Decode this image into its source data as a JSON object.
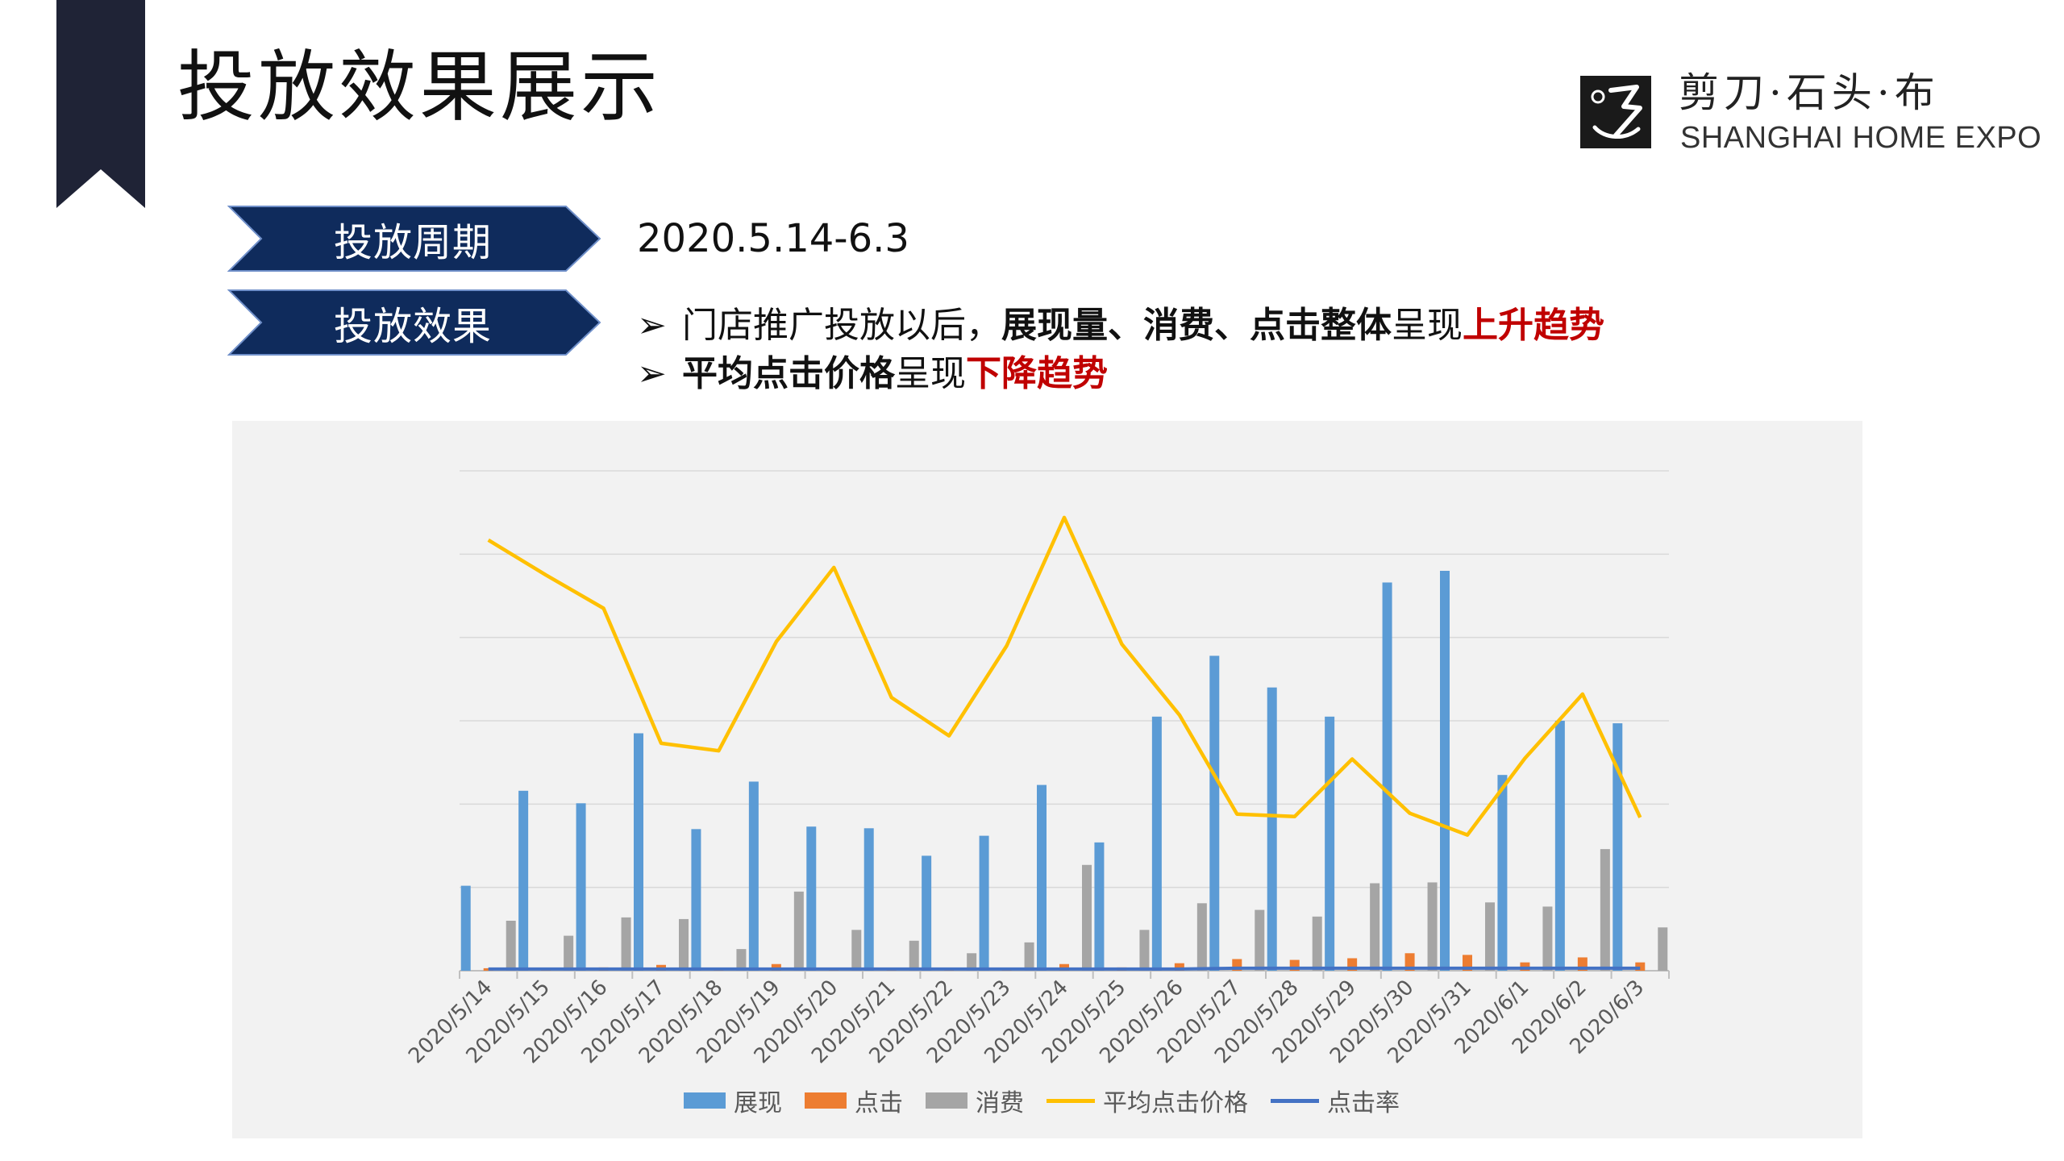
{
  "page": {
    "title": "投放效果展示"
  },
  "brand": {
    "name_cn": "剪刀·石头·布",
    "name_en": "SHANGHAI HOME EXPO"
  },
  "period": {
    "tag": "投放周期",
    "value": "2020.5.14-6.3"
  },
  "effect": {
    "tag": "投放效果",
    "bullet_marker": "➢",
    "line1": [
      {
        "text": "门店推广投放以后，",
        "style": "plain"
      },
      {
        "text": "展现量、消费、点击整体",
        "style": "bold"
      },
      {
        "text": "呈现",
        "style": "plain"
      },
      {
        "text": "上升趋势",
        "style": "red"
      }
    ],
    "line2": [
      {
        "text": "平均点击价格",
        "style": "bold"
      },
      {
        "text": "呈现",
        "style": "plain"
      },
      {
        "text": "下降趋势",
        "style": "red"
      }
    ]
  },
  "colors": {
    "navy": "#0f2b5c",
    "corner": "#1f2336",
    "accent_red": "#c00000",
    "series_impressions": "#5b9bd5",
    "series_clicks": "#ed7d31",
    "series_cost": "#a5a5a5",
    "series_avg_cpc": "#ffc000",
    "series_ctr": "#4472c4"
  },
  "chart_data": {
    "type": "bar",
    "categories": [
      "2020/5/14",
      "2020/5/15",
      "2020/5/16",
      "2020/5/17",
      "2020/5/18",
      "2020/5/19",
      "2020/5/20",
      "2020/5/21",
      "2020/5/22",
      "2020/5/23",
      "2020/5/24",
      "2020/5/25",
      "2020/5/26",
      "2020/5/27",
      "2020/5/28",
      "2020/5/29",
      "2020/5/30",
      "2020/5/31",
      "2020/6/1",
      "2020/6/2",
      "2020/6/3"
    ],
    "ylim": [
      0,
      6
    ],
    "gridlines": [
      1,
      2,
      3,
      4,
      5,
      6
    ],
    "y_tick_labels_shown": false,
    "legend_position": "bottom",
    "series": [
      {
        "name": "展现",
        "kind": "bar",
        "color": "#5b9bd5",
        "values": [
          1.02,
          2.16,
          2.01,
          2.85,
          1.7,
          2.27,
          1.73,
          1.71,
          1.38,
          1.62,
          2.23,
          1.54,
          3.05,
          3.78,
          3.4,
          3.05,
          4.66,
          4.8,
          2.35,
          3.0,
          2.97
        ]
      },
      {
        "name": "点击",
        "kind": "bar",
        "color": "#ed7d31",
        "values": [
          0.03,
          0.02,
          0.04,
          0.07,
          0.02,
          0.08,
          0.02,
          0.02,
          0.01,
          0.02,
          0.08,
          0.04,
          0.09,
          0.14,
          0.13,
          0.15,
          0.21,
          0.19,
          0.1,
          0.16,
          0.1
        ]
      },
      {
        "name": "消费",
        "kind": "bar",
        "color": "#a5a5a5",
        "values": [
          0.6,
          0.42,
          0.64,
          0.62,
          0.26,
          0.95,
          0.49,
          0.36,
          0.21,
          0.34,
          1.27,
          0.49,
          0.81,
          0.73,
          0.65,
          1.05,
          1.06,
          0.82,
          0.77,
          1.46,
          0.52
        ]
      },
      {
        "name": "平均点击价格",
        "kind": "line",
        "color": "#ffc000",
        "values": [
          5.17,
          4.75,
          4.35,
          2.73,
          2.64,
          3.95,
          4.84,
          3.28,
          2.82,
          3.9,
          5.44,
          3.92,
          3.07,
          1.88,
          1.85,
          2.54,
          1.89,
          1.63,
          2.55,
          3.32,
          1.84
        ]
      },
      {
        "name": "点击率",
        "kind": "line",
        "color": "#4472c4",
        "values": [
          0.02,
          0.02,
          0.02,
          0.02,
          0.02,
          0.02,
          0.02,
          0.02,
          0.02,
          0.02,
          0.02,
          0.02,
          0.02,
          0.03,
          0.03,
          0.03,
          0.03,
          0.03,
          0.03,
          0.03,
          0.03
        ]
      }
    ]
  }
}
